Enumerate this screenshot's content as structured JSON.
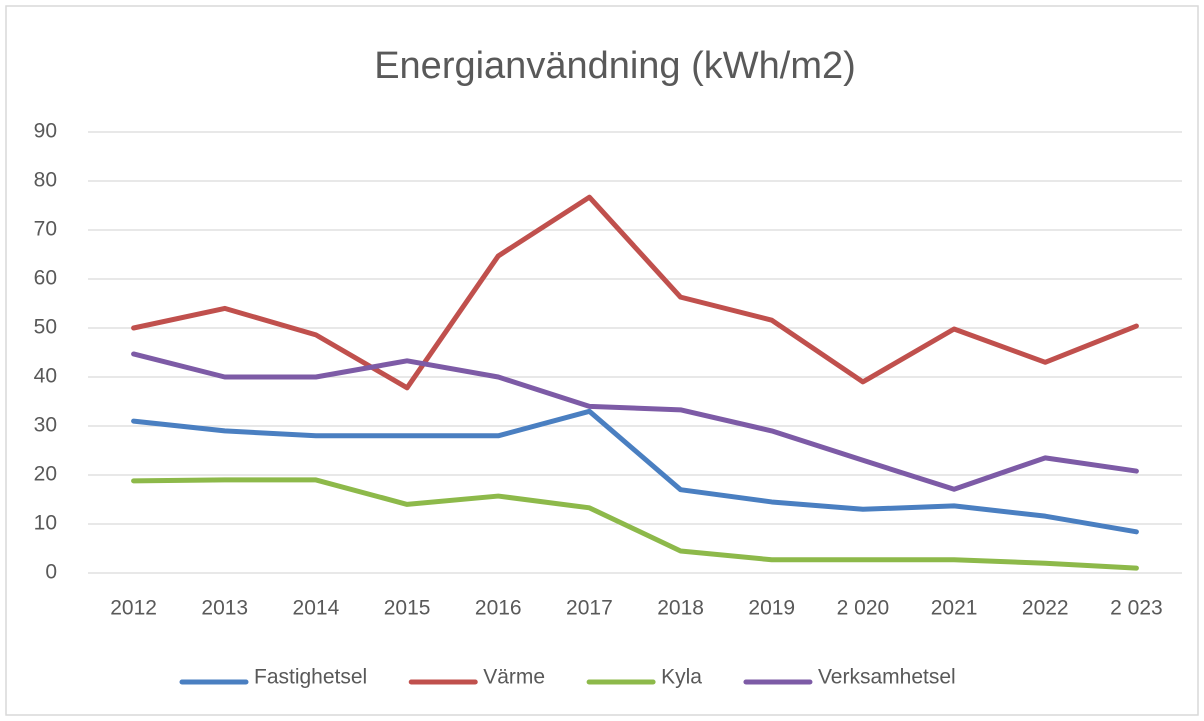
{
  "chart_data": {
    "type": "line",
    "title": "Energianvändning (kWh/m2)",
    "categories": [
      "2012",
      "2013",
      "2014",
      "2015",
      "2016",
      "2017",
      "2018",
      "2019",
      "2 020",
      "2021",
      "2022",
      "2 023"
    ],
    "series": [
      {
        "name": "Fastighetsel",
        "color": "#4a7fc1",
        "values": [
          31,
          29,
          28,
          28,
          28,
          33,
          17,
          14.5,
          13,
          13.7,
          11.6,
          8.4
        ]
      },
      {
        "name": "Värme",
        "color": "#c0504d",
        "values": [
          50,
          54,
          48.6,
          37.8,
          64.7,
          76.7,
          56.3,
          51.6,
          39,
          49.8,
          43,
          50.4
        ]
      },
      {
        "name": "Kyla",
        "color": "#8db94a",
        "values": [
          18.8,
          19,
          19,
          14,
          15.7,
          13.3,
          4.5,
          2.7,
          2.7,
          2.7,
          2,
          1
        ]
      },
      {
        "name": "Verksamhetsel",
        "color": "#7d5ba6",
        "values": [
          44.7,
          40,
          40,
          43.3,
          40,
          34,
          33.3,
          29,
          23,
          17.1,
          23.5,
          20.8
        ]
      }
    ],
    "ylim": [
      0,
      90
    ],
    "yticks": [
      0,
      10,
      20,
      30,
      40,
      50,
      60,
      70,
      80,
      90
    ],
    "grid": true,
    "legend": "bottom"
  }
}
